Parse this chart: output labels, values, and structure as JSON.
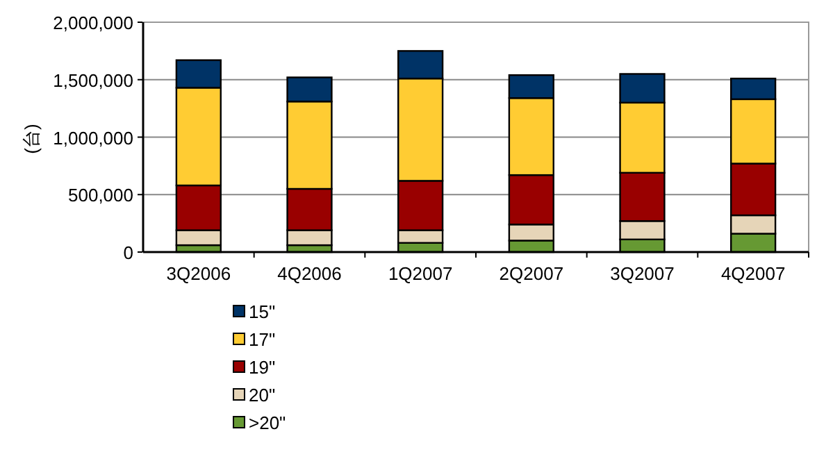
{
  "chart_data": {
    "type": "bar",
    "stacked": true,
    "ylabel": "(台)",
    "categories": [
      "3Q2006",
      "4Q2006",
      "1Q2007",
      "2Q2007",
      "3Q2007",
      "4Q2007"
    ],
    "series": [
      {
        "name": ">20\"",
        "color": "#669933",
        "values": [
          60000,
          60000,
          80000,
          100000,
          110000,
          160000
        ]
      },
      {
        "name": "20\"",
        "color": "#e6d5b8",
        "values": [
          130000,
          130000,
          110000,
          140000,
          160000,
          160000
        ]
      },
      {
        "name": "19\"",
        "color": "#990000",
        "values": [
          390000,
          360000,
          430000,
          430000,
          420000,
          450000
        ]
      },
      {
        "name": "17\"",
        "color": "#ffcc33",
        "values": [
          850000,
          760000,
          890000,
          670000,
          610000,
          560000
        ]
      },
      {
        "name": "15\"",
        "color": "#003366",
        "values": [
          240000,
          210000,
          240000,
          200000,
          250000,
          180000
        ]
      }
    ],
    "ylim": [
      0,
      2000000
    ],
    "yticks": [
      {
        "value": 0,
        "label": "0"
      },
      {
        "value": 500000,
        "label": "500,000"
      },
      {
        "value": 1000000,
        "label": "1,000,000"
      },
      {
        "value": 1500000,
        "label": "1,500,000"
      },
      {
        "value": 2000000,
        "label": "2,000,000"
      }
    ],
    "grid": "y",
    "legend": "bottom"
  }
}
